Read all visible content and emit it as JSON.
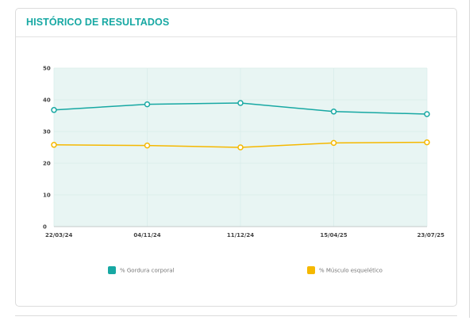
{
  "card": {
    "title": "HISTÓRICO DE RESULTADOS"
  },
  "chart_data": {
    "type": "line",
    "title": "HISTÓRICO DE RESULTADOS",
    "xlabel": "",
    "ylabel": "",
    "categories": [
      "22/03/24",
      "04/11/24",
      "11/12/24",
      "15/04/25",
      "23/07/25"
    ],
    "ylim": [
      0,
      50
    ],
    "yticks": [
      0,
      10,
      20,
      30,
      40,
      50
    ],
    "grid": true,
    "legend_position": "bottom",
    "series": [
      {
        "name": "% Gordura corporal",
        "color": "#17a8a3",
        "values": [
          36.8,
          38.6,
          39.0,
          36.3,
          35.5
        ]
      },
      {
        "name": "% Músculo esquelético",
        "color": "#f5b800",
        "values": [
          25.8,
          25.6,
          25.0,
          26.4,
          26.6
        ]
      }
    ],
    "plot_background": "#e8f5f3"
  }
}
